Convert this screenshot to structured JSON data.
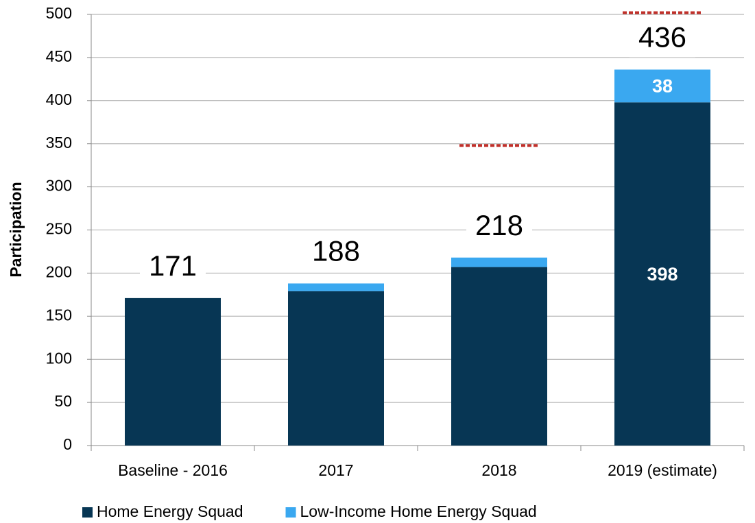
{
  "chart_data": {
    "type": "stacked_bar",
    "y_label": "Participation",
    "categories": [
      "Baseline - 2016",
      "2017",
      "2018",
      "2019 (estimate)"
    ],
    "series": [
      {
        "name": "Home Energy Squad",
        "color": "#073654",
        "values": [
          171,
          179,
          207,
          398
        ],
        "value_labels": [
          null,
          null,
          null,
          "398"
        ]
      },
      {
        "name": "Low-Income Home Energy Squad",
        "color": "#3aa8f0",
        "values": [
          0,
          9,
          11,
          38
        ],
        "value_labels": [
          null,
          null,
          null,
          "38"
        ]
      }
    ],
    "totals": [
      171,
      188,
      218,
      436
    ],
    "targets": [
      null,
      null,
      348,
      502
    ],
    "target_color": "#c0302a",
    "ylim": [
      0,
      500
    ],
    "yticks": [
      0,
      50,
      100,
      150,
      200,
      250,
      300,
      350,
      400,
      450,
      500
    ],
    "grid": true,
    "legend": "bottom"
  }
}
